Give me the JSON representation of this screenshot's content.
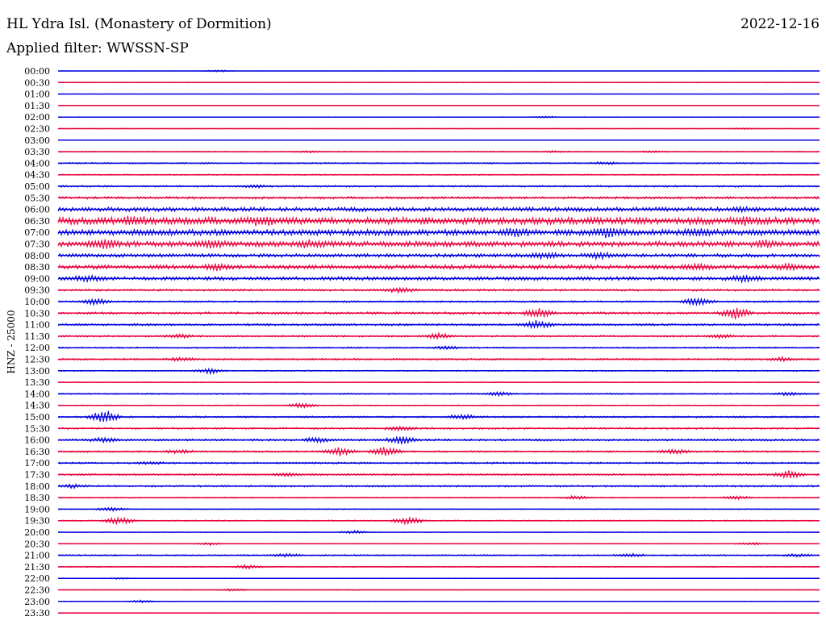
{
  "header": {
    "station": "HL Ydra Isl. (Monastery of Dormition)",
    "date": "2022-12-16",
    "filter": "Applied filter: WWSSN-SP"
  },
  "colors": {
    "odd": "#0000e0",
    "even": "#e8003c"
  },
  "chart_data": {
    "type": "line",
    "title": "HL Ydra Isl. (Monastery of Dormition)",
    "ylabel": "HNZ - 25000",
    "x_range": [
      "00:00",
      "23:59"
    ],
    "trace_color_cycle": [
      "blue",
      "red"
    ],
    "rows": [
      {
        "time": "00:00",
        "color": "blue",
        "noise": 0.3,
        "events": [
          [
            0.21,
            3
          ]
        ]
      },
      {
        "time": "00:30",
        "color": "red",
        "noise": 0.6,
        "events": []
      },
      {
        "time": "01:00",
        "color": "blue",
        "noise": 0.4,
        "events": []
      },
      {
        "time": "01:30",
        "color": "red",
        "noise": 0.3,
        "events": []
      },
      {
        "time": "02:00",
        "color": "blue",
        "noise": 0.5,
        "events": [
          [
            0.64,
            2
          ]
        ]
      },
      {
        "time": "02:30",
        "color": "red",
        "noise": 0.6,
        "events": [
          [
            0.9,
            2
          ]
        ]
      },
      {
        "time": "03:00",
        "color": "blue",
        "noise": 0.3,
        "events": []
      },
      {
        "time": "03:30",
        "color": "red",
        "noise": 0.9,
        "events": [
          [
            0.33,
            2
          ],
          [
            0.65,
            2
          ],
          [
            0.78,
            2
          ]
        ]
      },
      {
        "time": "04:00",
        "color": "blue",
        "noise": 1.2,
        "events": [
          [
            0.72,
            3
          ]
        ]
      },
      {
        "time": "04:30",
        "color": "red",
        "noise": 1.0,
        "events": []
      },
      {
        "time": "05:00",
        "color": "blue",
        "noise": 1.5,
        "events": [
          [
            0.26,
            3
          ]
        ]
      },
      {
        "time": "05:30",
        "color": "red",
        "noise": 2.0,
        "events": []
      },
      {
        "time": "06:00",
        "color": "blue",
        "noise": 3.5,
        "events": [
          [
            0.9,
            4
          ]
        ]
      },
      {
        "time": "06:30",
        "color": "red",
        "noise": 6.0,
        "events": [
          [
            0.1,
            6
          ],
          [
            0.27,
            7
          ],
          [
            0.9,
            7
          ]
        ]
      },
      {
        "time": "07:00",
        "color": "blue",
        "noise": 5.0,
        "events": [
          [
            0.6,
            8
          ],
          [
            0.72,
            9
          ],
          [
            0.84,
            6
          ]
        ]
      },
      {
        "time": "07:30",
        "color": "red",
        "noise": 4.5,
        "events": [
          [
            0.06,
            9
          ],
          [
            0.2,
            7
          ],
          [
            0.33,
            6
          ],
          [
            0.93,
            6
          ]
        ]
      },
      {
        "time": "08:00",
        "color": "blue",
        "noise": 3.0,
        "events": [
          [
            0.64,
            7
          ],
          [
            0.71,
            6
          ]
        ]
      },
      {
        "time": "08:30",
        "color": "red",
        "noise": 3.5,
        "events": [
          [
            0.21,
            6
          ],
          [
            0.84,
            5
          ],
          [
            0.96,
            6
          ]
        ]
      },
      {
        "time": "09:00",
        "color": "blue",
        "noise": 3.0,
        "events": [
          [
            0.04,
            6
          ],
          [
            0.9,
            6
          ]
        ]
      },
      {
        "time": "09:30",
        "color": "red",
        "noise": 1.8,
        "events": [
          [
            0.45,
            6
          ]
        ]
      },
      {
        "time": "10:00",
        "color": "blue",
        "noise": 1.5,
        "events": [
          [
            0.05,
            8
          ],
          [
            0.84,
            10
          ]
        ]
      },
      {
        "time": "10:30",
        "color": "red",
        "noise": 2.0,
        "events": [
          [
            0.63,
            12
          ],
          [
            0.89,
            14
          ]
        ]
      },
      {
        "time": "11:00",
        "color": "blue",
        "noise": 1.8,
        "events": [
          [
            0.63,
            10
          ]
        ]
      },
      {
        "time": "11:30",
        "color": "red",
        "noise": 1.5,
        "events": [
          [
            0.16,
            5
          ],
          [
            0.5,
            7
          ],
          [
            0.87,
            4
          ]
        ]
      },
      {
        "time": "12:00",
        "color": "blue",
        "noise": 1.2,
        "events": [
          [
            0.51,
            4
          ]
        ]
      },
      {
        "time": "12:30",
        "color": "red",
        "noise": 1.5,
        "events": [
          [
            0.16,
            4
          ],
          [
            0.95,
            4
          ]
        ]
      },
      {
        "time": "13:00",
        "color": "blue",
        "noise": 1.0,
        "events": [
          [
            0.2,
            7
          ]
        ]
      },
      {
        "time": "13:30",
        "color": "red",
        "noise": 0.8,
        "events": []
      },
      {
        "time": "14:00",
        "color": "blue",
        "noise": 1.2,
        "events": [
          [
            0.58,
            4
          ],
          [
            0.96,
            4
          ]
        ]
      },
      {
        "time": "14:30",
        "color": "red",
        "noise": 0.8,
        "events": [
          [
            0.32,
            6
          ]
        ]
      },
      {
        "time": "15:00",
        "color": "blue",
        "noise": 1.5,
        "events": [
          [
            0.06,
            18
          ],
          [
            0.53,
            6
          ]
        ]
      },
      {
        "time": "15:30",
        "color": "red",
        "noise": 1.5,
        "events": [
          [
            0.45,
            6
          ]
        ]
      },
      {
        "time": "16:00",
        "color": "blue",
        "noise": 1.8,
        "events": [
          [
            0.06,
            5
          ],
          [
            0.34,
            6
          ],
          [
            0.45,
            10
          ]
        ]
      },
      {
        "time": "16:30",
        "color": "red",
        "noise": 1.5,
        "events": [
          [
            0.16,
            5
          ],
          [
            0.37,
            10
          ],
          [
            0.43,
            12
          ],
          [
            0.81,
            6
          ]
        ]
      },
      {
        "time": "17:00",
        "color": "blue",
        "noise": 1.5,
        "events": [
          [
            0.12,
            3
          ]
        ]
      },
      {
        "time": "17:30",
        "color": "red",
        "noise": 1.5,
        "events": [
          [
            0.3,
            4
          ],
          [
            0.96,
            9
          ]
        ]
      },
      {
        "time": "18:00",
        "color": "blue",
        "noise": 1.5,
        "events": [
          [
            0.02,
            4
          ]
        ]
      },
      {
        "time": "18:30",
        "color": "red",
        "noise": 1.0,
        "events": [
          [
            0.68,
            4
          ],
          [
            0.89,
            4
          ]
        ]
      },
      {
        "time": "19:00",
        "color": "blue",
        "noise": 0.8,
        "events": [
          [
            0.07,
            5
          ]
        ]
      },
      {
        "time": "19:30",
        "color": "red",
        "noise": 1.0,
        "events": [
          [
            0.08,
            10
          ],
          [
            0.46,
            10
          ]
        ]
      },
      {
        "time": "20:00",
        "color": "blue",
        "noise": 0.8,
        "events": [
          [
            0.39,
            4
          ]
        ]
      },
      {
        "time": "20:30",
        "color": "red",
        "noise": 0.6,
        "events": [
          [
            0.2,
            3
          ],
          [
            0.91,
            3
          ]
        ]
      },
      {
        "time": "21:00",
        "color": "blue",
        "noise": 1.2,
        "events": [
          [
            0.3,
            4
          ],
          [
            0.75,
            4
          ],
          [
            0.97,
            4
          ]
        ]
      },
      {
        "time": "21:30",
        "color": "red",
        "noise": 0.8,
        "events": [
          [
            0.25,
            5
          ]
        ]
      },
      {
        "time": "22:00",
        "color": "blue",
        "noise": 0.6,
        "events": [
          [
            0.08,
            2
          ]
        ]
      },
      {
        "time": "22:30",
        "color": "red",
        "noise": 0.8,
        "events": [
          [
            0.23,
            3
          ]
        ]
      },
      {
        "time": "23:00",
        "color": "blue",
        "noise": 0.6,
        "events": [
          [
            0.11,
            3
          ]
        ]
      },
      {
        "time": "23:30",
        "color": "red",
        "noise": 0.3,
        "events": []
      }
    ]
  }
}
